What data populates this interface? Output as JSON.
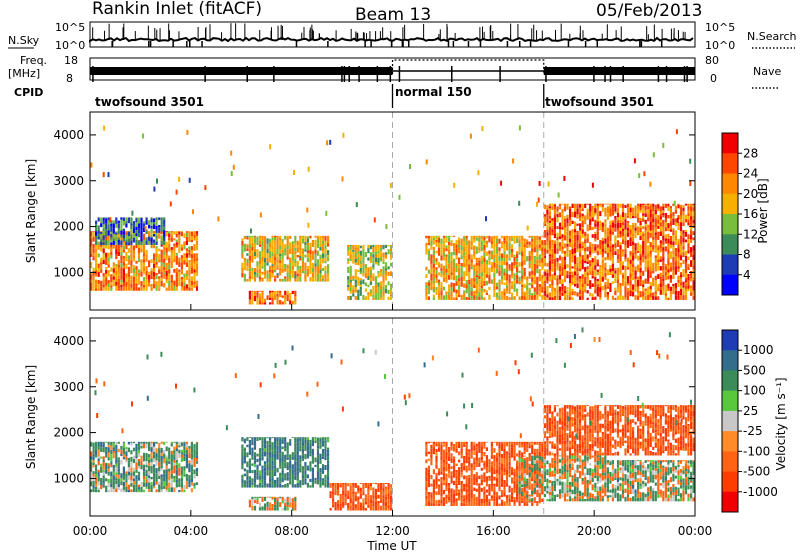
{
  "header": {
    "station": "Rankin Inlet (fitACF)",
    "beam": "Beam 13",
    "date": "05/Feb/2013"
  },
  "info_panels": {
    "nsky_label": "N.Sky",
    "nsky_ticks": [
      "10^5",
      "10^0"
    ],
    "nsearch_label": "N.Search",
    "freq_label_1": "Freq.",
    "freq_label_2": "[MHz]",
    "freq_ticks": [
      "18",
      "8"
    ],
    "nave_label": "Nave",
    "nave_ticks": [
      "80",
      "0"
    ],
    "cpid_label": "CPID",
    "cpid_segments": [
      {
        "label": "twofsound 3501",
        "start_hour": 0,
        "end_hour": 12
      },
      {
        "label": "normal 150",
        "start_hour": 12,
        "end_hour": 18
      },
      {
        "label": "twofsound 3501",
        "start_hour": 18,
        "end_hour": 24
      }
    ]
  },
  "axes": {
    "xlabel": "Time UT",
    "x_ticks": [
      "00:00",
      "04:00",
      "08:00",
      "12:00",
      "16:00",
      "20:00",
      "00:00"
    ],
    "ylabel": "Slant Range [km]",
    "y_ticks": [
      "1000",
      "2000",
      "3000",
      "4000"
    ]
  },
  "colorbars": {
    "power": {
      "label": "Power [dB]",
      "ticks": [
        "28",
        "24",
        "20",
        "16",
        "12",
        "8",
        "4"
      ],
      "colors": [
        "#f00000",
        "#ff4500",
        "#ff8800",
        "#f5b000",
        "#78be3c",
        "#3c8c5a",
        "#1e3cb4",
        "#0000ff"
      ]
    },
    "velocity": {
      "label": "Velocity [m s⁻¹]",
      "ticks": [
        "1000",
        "500",
        "100",
        "25",
        "-25",
        "-100",
        "-500",
        "-1000"
      ],
      "colors": [
        "#1e3cb4",
        "#326e8c",
        "#3c8c5a",
        "#5ac83c",
        "#c8c8c8",
        "#ff8c28",
        "#ff6414",
        "#ff3c00",
        "#f00000"
      ]
    }
  },
  "chart_data": [
    {
      "type": "heatmap",
      "title": "Power",
      "xlabel": "Time UT",
      "ylabel": "Slant Range [km]",
      "xlim": [
        0,
        24
      ],
      "ylim": [
        180,
        4500
      ],
      "colorbar": {
        "label": "Power [dB]",
        "range": [
          0,
          32
        ]
      },
      "regions": [
        {
          "t0": 0.0,
          "t1": 4.3,
          "r0": 600,
          "r1": 1900,
          "value": 24
        },
        {
          "t0": 0.2,
          "t1": 3.0,
          "r0": 1600,
          "r1": 2200,
          "value": 10
        },
        {
          "t0": 6.0,
          "t1": 9.5,
          "r0": 800,
          "r1": 1800,
          "value": 20
        },
        {
          "t0": 6.3,
          "t1": 8.2,
          "r0": 300,
          "r1": 600,
          "value": 26
        },
        {
          "t0": 10.2,
          "t1": 12.0,
          "r0": 400,
          "r1": 1600,
          "value": 18
        },
        {
          "t0": 13.3,
          "t1": 18.0,
          "r0": 400,
          "r1": 1800,
          "value": 22
        },
        {
          "t0": 18.0,
          "t1": 24.0,
          "r0": 400,
          "r1": 2500,
          "value": 26
        }
      ]
    },
    {
      "type": "heatmap",
      "title": "Velocity",
      "xlabel": "Time UT",
      "ylabel": "Slant Range [km]",
      "xlim": [
        0,
        24
      ],
      "ylim": [
        180,
        4500
      ],
      "colorbar": {
        "label": "Velocity [m s⁻¹]",
        "range": [
          -1000,
          1000
        ]
      },
      "regions": [
        {
          "t0": 0.0,
          "t1": 4.3,
          "r0": 700,
          "r1": 1800,
          "value": 150
        },
        {
          "t0": 6.0,
          "t1": 9.5,
          "r0": 800,
          "r1": 1900,
          "value": 300
        },
        {
          "t0": 6.3,
          "t1": 8.2,
          "r0": 300,
          "r1": 600,
          "value": 0
        },
        {
          "t0": 9.5,
          "t1": 12.0,
          "r0": 300,
          "r1": 900,
          "value": -300
        },
        {
          "t0": 13.3,
          "t1": 18.0,
          "r0": 400,
          "r1": 1800,
          "value": -300
        },
        {
          "t0": 17.0,
          "t1": 20.5,
          "r0": 500,
          "r1": 1500,
          "value": 0
        },
        {
          "t0": 20.5,
          "t1": 24.0,
          "r0": 500,
          "r1": 1400,
          "value": 60
        },
        {
          "t0": 18.0,
          "t1": 24.0,
          "r0": 1500,
          "r1": 2600,
          "value": -300
        }
      ]
    }
  ]
}
